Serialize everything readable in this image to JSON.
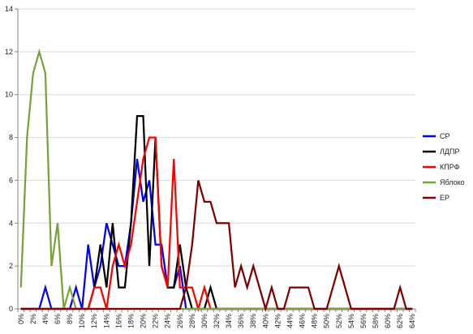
{
  "chart_data": {
    "type": "line",
    "x": [
      "0%",
      "1%",
      "2%",
      "3%",
      "4%",
      "5%",
      "6%",
      "7%",
      "8%",
      "9%",
      "10%",
      "11%",
      "12%",
      "13%",
      "14%",
      "15%",
      "16%",
      "17%",
      "18%",
      "19%",
      "20%",
      "21%",
      "22%",
      "23%",
      "24%",
      "25%",
      "26%",
      "27%",
      "28%",
      "29%",
      "30%",
      "31%",
      "32%",
      "33%",
      "34%",
      "35%",
      "36%",
      "37%",
      "38%",
      "39%",
      "40%",
      "41%",
      "42%",
      "43%",
      "44%",
      "45%",
      "46%",
      "47%",
      "48%",
      "49%",
      "50%",
      "51%",
      "52%",
      "53%",
      "54%",
      "55%",
      "56%",
      "57%",
      "58%",
      "59%",
      "60%",
      "61%",
      "62%",
      "63%",
      "64%"
    ],
    "x_tick_labels": [
      "0%",
      "2%",
      "4%",
      "6%",
      "8%",
      "10%",
      "12%",
      "14%",
      "16%",
      "18%",
      "20%",
      "22%",
      "24%",
      "26%",
      "28%",
      "30%",
      "32%",
      "34%",
      "36%",
      "38%",
      "40%",
      "42%",
      "44%",
      "46%",
      "48%",
      "50%",
      "52%",
      "54%",
      "56%",
      "58%",
      "60%",
      "62%",
      "64%"
    ],
    "ylim": [
      0,
      14
    ],
    "y_ticks": [
      "0",
      "2",
      "4",
      "6",
      "8",
      "10",
      "12",
      "14"
    ],
    "grid": "horizontal",
    "legend_position": "right",
    "series": [
      {
        "name": "СР",
        "color": "#0000ff",
        "values": [
          0,
          0,
          0,
          0,
          1,
          0,
          0,
          0,
          0,
          1,
          0,
          3,
          1,
          2,
          4,
          3,
          2,
          2,
          4,
          7,
          5,
          6,
          3,
          3,
          1,
          1,
          2,
          0,
          0,
          0,
          0,
          0,
          0,
          0,
          0,
          0,
          0,
          0,
          0,
          0,
          0,
          0,
          0,
          0,
          0,
          0,
          0,
          0,
          0,
          0,
          0,
          0,
          0,
          0,
          0,
          0,
          0,
          0,
          0,
          0,
          0,
          0,
          0,
          0,
          0
        ]
      },
      {
        "name": "ЛДПР",
        "color": "#000000",
        "values": [
          0,
          0,
          0,
          0,
          0,
          0,
          0,
          0,
          0,
          0,
          0,
          0,
          1,
          3,
          1,
          4,
          1,
          1,
          4,
          9,
          9,
          2,
          8,
          2,
          1,
          1,
          3,
          1,
          0,
          0,
          0,
          1,
          0,
          0,
          0,
          0,
          0,
          0,
          0,
          0,
          0,
          0,
          0,
          0,
          0,
          0,
          0,
          0,
          0,
          0,
          0,
          0,
          0,
          0,
          0,
          0,
          0,
          0,
          0,
          0,
          0,
          0,
          0,
          0,
          0
        ]
      },
      {
        "name": "КПРФ",
        "color": "#ff0000",
        "values": [
          0,
          0,
          0,
          0,
          0,
          0,
          0,
          0,
          0,
          0,
          0,
          0,
          1,
          1,
          0,
          2,
          3,
          2,
          3,
          5,
          7,
          8,
          8,
          2,
          1,
          7,
          1,
          1,
          1,
          0,
          1,
          0,
          0,
          0,
          0,
          0,
          0,
          0,
          0,
          0,
          0,
          0,
          0,
          0,
          0,
          0,
          0,
          0,
          0,
          0,
          0,
          0,
          0,
          0,
          0,
          0,
          0,
          0,
          0,
          0,
          0,
          0,
          0,
          0,
          0
        ]
      },
      {
        "name": "Яблоко",
        "color": "#77a33c",
        "values": [
          1,
          8,
          11,
          12,
          11,
          2,
          4,
          0,
          1,
          0,
          0,
          0,
          0,
          0,
          0,
          0,
          0,
          0,
          0,
          0,
          0,
          0,
          0,
          0,
          0,
          0,
          0,
          0,
          0,
          0,
          0,
          0,
          0,
          0,
          0,
          0,
          0,
          0,
          0,
          0,
          0,
          0,
          0,
          0,
          0,
          0,
          0,
          0,
          0,
          0,
          0,
          0,
          0,
          0,
          0,
          0,
          0,
          0,
          0,
          0,
          0,
          0,
          0,
          0,
          0
        ]
      },
      {
        "name": "ЕР",
        "color": "#800000",
        "values": [
          0,
          0,
          0,
          0,
          0,
          0,
          0,
          0,
          0,
          0,
          0,
          0,
          0,
          0,
          0,
          0,
          0,
          0,
          0,
          0,
          0,
          0,
          0,
          0,
          0,
          0,
          0,
          1,
          3,
          6,
          5,
          5,
          4,
          4,
          4,
          1,
          2,
          1,
          2,
          1,
          0,
          1,
          0,
          0,
          1,
          1,
          1,
          1,
          0,
          0,
          0,
          1,
          2,
          1,
          0,
          0,
          0,
          0,
          0,
          0,
          0,
          0,
          1,
          0,
          0
        ]
      }
    ]
  }
}
